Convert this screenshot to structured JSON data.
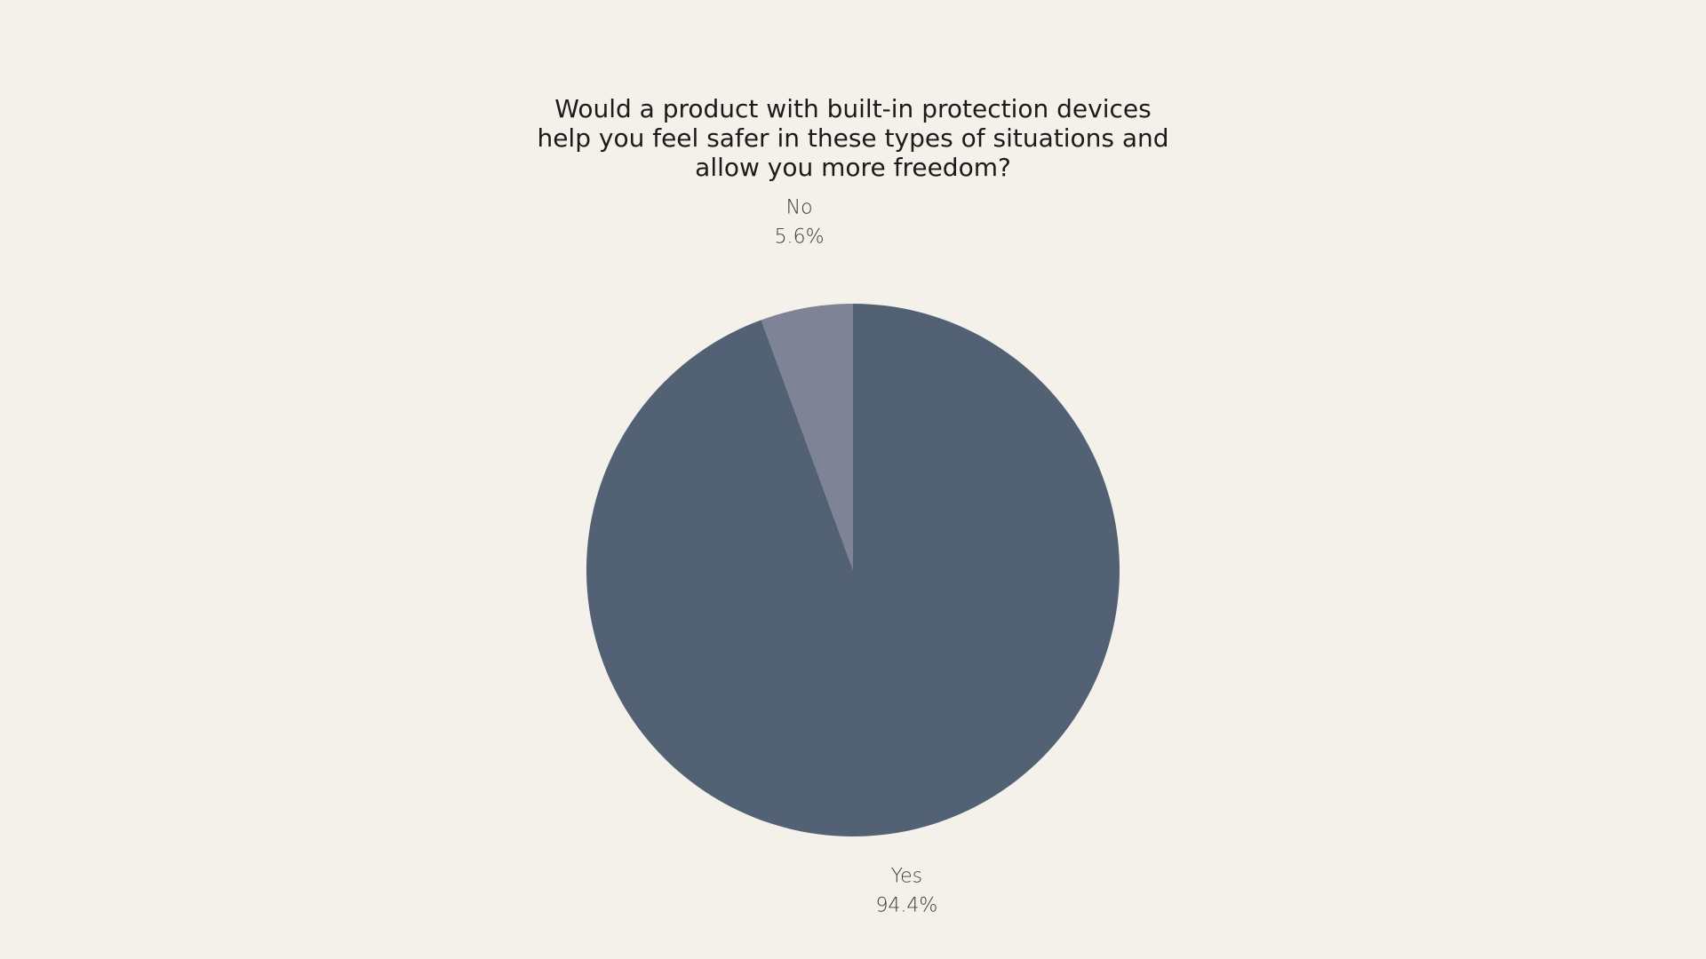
{
  "chart_data": {
    "type": "pie",
    "title": "Would a product with built-in protection devices\nhelp you feel safer in these types of situations and\nallow you more freedom?",
    "slices": [
      {
        "label": "No",
        "value": 5.6,
        "value_label": "5.6%",
        "color": "#7e8396"
      },
      {
        "label": "Yes",
        "value": 94.4,
        "value_label": "94.4%",
        "color": "#526274"
      }
    ],
    "start_angle_deg": 0,
    "direction": "counterclockwise-from-top",
    "legend": "none"
  },
  "colors": {
    "background": "#f3f1ea"
  }
}
